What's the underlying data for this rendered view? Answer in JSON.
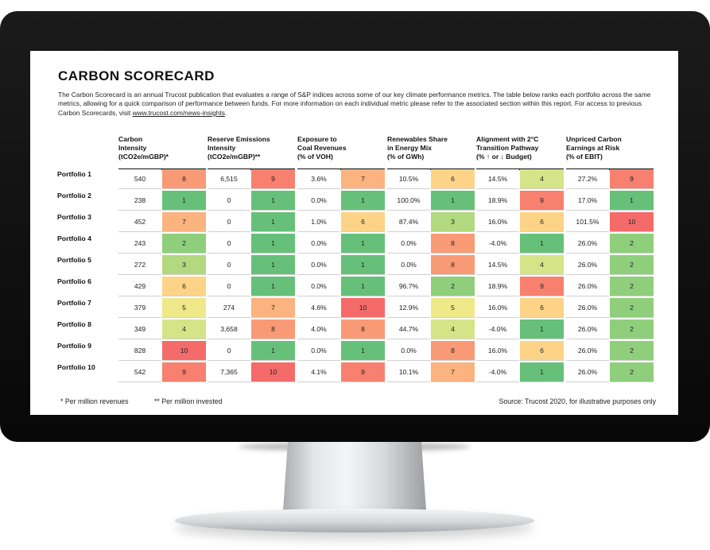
{
  "title": "CARBON SCORECARD",
  "intro": {
    "text": "The Carbon Scorecard is an annual Trucost publication that evaluates a range of S&P indices across some of our key climate performance metrics. The table below ranks each portfolio across the same metrics, allowing for a quick comparison of performance between funds. For more information on each individual metric please refer to the associated section within this report. For access to previous Carbon Scorecards, visit ",
    "link": "www.trucost.com/news-insights",
    "end": "."
  },
  "columns": [
    {
      "line1": "Carbon",
      "line2": "Intensity",
      "line3": "(tCO2e/mGBP)*"
    },
    {
      "line1": "Reserve Emissions",
      "line2": "Intensity",
      "line3": "(tCO2e/mGBP)**"
    },
    {
      "line1": "Exposure to",
      "line2": "Coal Revenues",
      "line3": "(% of VOH)"
    },
    {
      "line1": "Renewables Share",
      "line2": "in Energy Mix",
      "line3": "(% of GWh)"
    },
    {
      "line1": "Alignment with 2°C",
      "line2": "Transition Pathway",
      "line3": "(% ↑ or ↓ Budget)"
    },
    {
      "line1": "Unpriced Carbon",
      "line2": "Earnings at Risk",
      "line3": "(% of EBIT)"
    }
  ],
  "rows": [
    {
      "label": "Portfolio 1",
      "cells": [
        {
          "v": "540",
          "r": "8"
        },
        {
          "v": "6,515",
          "r": "9"
        },
        {
          "v": "3.6%",
          "r": "7"
        },
        {
          "v": "10.5%",
          "r": "6"
        },
        {
          "v": "14.5%",
          "r": "4"
        },
        {
          "v": "27.2%",
          "r": "9"
        }
      ]
    },
    {
      "label": "Portfolio 2",
      "cells": [
        {
          "v": "238",
          "r": "1"
        },
        {
          "v": "0",
          "r": "1"
        },
        {
          "v": "0.0%",
          "r": "1"
        },
        {
          "v": "100.0%",
          "r": "1"
        },
        {
          "v": "18.9%",
          "r": "9"
        },
        {
          "v": "17.0%",
          "r": "1"
        }
      ]
    },
    {
      "label": "Portfolio 3",
      "cells": [
        {
          "v": "452",
          "r": "7"
        },
        {
          "v": "0",
          "r": "1"
        },
        {
          "v": "1.0%",
          "r": "6"
        },
        {
          "v": "87.4%",
          "r": "3"
        },
        {
          "v": "16.0%",
          "r": "6"
        },
        {
          "v": "101.5%",
          "r": "10"
        }
      ]
    },
    {
      "label": "Portfolio 4",
      "cells": [
        {
          "v": "243",
          "r": "2"
        },
        {
          "v": "0",
          "r": "1"
        },
        {
          "v": "0.0%",
          "r": "1"
        },
        {
          "v": "0.0%",
          "r": "8"
        },
        {
          "v": "-4.0%",
          "r": "1"
        },
        {
          "v": "26.0%",
          "r": "2"
        }
      ]
    },
    {
      "label": "Portfolio 5",
      "cells": [
        {
          "v": "272",
          "r": "3"
        },
        {
          "v": "0",
          "r": "1"
        },
        {
          "v": "0.0%",
          "r": "1"
        },
        {
          "v": "0.0%",
          "r": "8"
        },
        {
          "v": "14.5%",
          "r": "4"
        },
        {
          "v": "26.0%",
          "r": "2"
        }
      ]
    },
    {
      "label": "Portfolio 6",
      "cells": [
        {
          "v": "429",
          "r": "6"
        },
        {
          "v": "0",
          "r": "1"
        },
        {
          "v": "0.0%",
          "r": "1"
        },
        {
          "v": "96.7%",
          "r": "2"
        },
        {
          "v": "18.9%",
          "r": "9"
        },
        {
          "v": "26.0%",
          "r": "2"
        }
      ]
    },
    {
      "label": "Portfolio 7",
      "cells": [
        {
          "v": "379",
          "r": "5"
        },
        {
          "v": "274",
          "r": "7"
        },
        {
          "v": "4.6%",
          "r": "10"
        },
        {
          "v": "12.9%",
          "r": "5"
        },
        {
          "v": "16.0%",
          "r": "6"
        },
        {
          "v": "26.0%",
          "r": "2"
        }
      ]
    },
    {
      "label": "Portfolio 8",
      "cells": [
        {
          "v": "349",
          "r": "4"
        },
        {
          "v": "3,658",
          "r": "8"
        },
        {
          "v": "4.0%",
          "r": "8"
        },
        {
          "v": "44.7%",
          "r": "4"
        },
        {
          "v": "-4.0%",
          "r": "1"
        },
        {
          "v": "26.0%",
          "r": "2"
        }
      ]
    },
    {
      "label": "Portfolio 9",
      "cells": [
        {
          "v": "828",
          "r": "10"
        },
        {
          "v": "0",
          "r": "1"
        },
        {
          "v": "0.0%",
          "r": "1"
        },
        {
          "v": "0.0%",
          "r": "8"
        },
        {
          "v": "16.0%",
          "r": "6"
        },
        {
          "v": "26.0%",
          "r": "2"
        }
      ]
    },
    {
      "label": "Portfolio 10",
      "cells": [
        {
          "v": "542",
          "r": "9"
        },
        {
          "v": "7,365",
          "r": "10"
        },
        {
          "v": "4.1%",
          "r": "9"
        },
        {
          "v": "10.1%",
          "r": "7"
        },
        {
          "v": "-4.0%",
          "r": "1"
        },
        {
          "v": "26.0%",
          "r": "2"
        }
      ]
    }
  ],
  "rank_colors": {
    "1": "#67c07a",
    "2": "#8fcf7c",
    "3": "#b2d880",
    "4": "#d6e488",
    "5": "#efe98a",
    "6": "#fdd487",
    "7": "#fbb37f",
    "8": "#f99a77",
    "9": "#f7806f",
    "10": "#f46b6a"
  },
  "footer": {
    "note1": "* Per million revenues",
    "note2": "** Per million invested",
    "source": "Source: Trucost 2020, for illustrative purposes only"
  }
}
